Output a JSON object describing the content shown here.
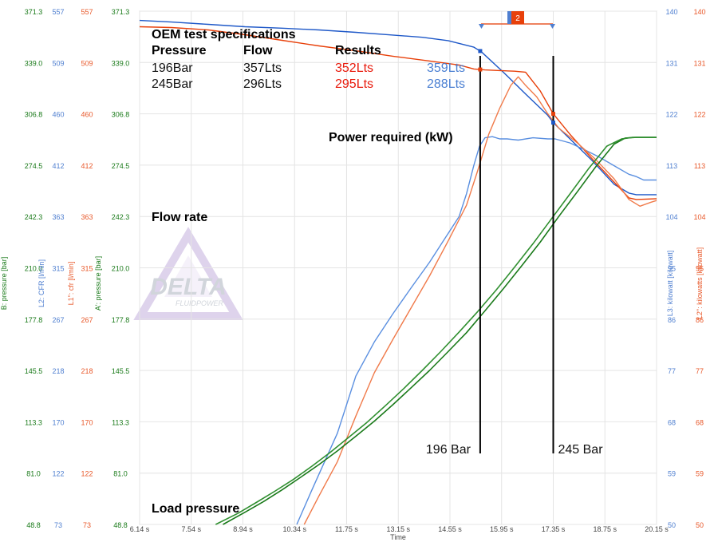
{
  "chart_data": {
    "type": "line",
    "x_axis": {
      "label": "Time",
      "ticks": [
        "6.14 s",
        "7.54 s",
        "8.94 s",
        "10.34 s",
        "11.75 s",
        "13.15 s",
        "14.55 s",
        "15.95 s",
        "17.35 s",
        "18.75 s",
        "20.15 s"
      ],
      "range": [
        6.14,
        20.15
      ]
    },
    "axes": [
      {
        "label": "B: pressure [bar]",
        "side": "left",
        "color": "#1a7a1a",
        "ticks": [
          "371.3",
          "339.0",
          "306.8",
          "274.5",
          "242.3",
          "210.0",
          "177.8",
          "145.5",
          "113.3",
          "81.0",
          "48.8"
        ]
      },
      {
        "label": "L2: CFR [l/min]",
        "side": "left",
        "color": "#4f7fd0",
        "ticks": [
          "557",
          "509",
          "460",
          "412",
          "363",
          "315",
          "267",
          "218",
          "170",
          "122",
          "73"
        ]
      },
      {
        "label": "L1\": cfr [l/min]",
        "side": "left",
        "color": "#e8582a",
        "ticks": [
          "557",
          "509",
          "460",
          "412",
          "363",
          "315",
          "267",
          "218",
          "170",
          "122",
          "73"
        ]
      },
      {
        "label": "A': pressure [bar]",
        "side": "left",
        "color": "#1a7a1a",
        "ticks": [
          "371.3",
          "339.0",
          "306.8",
          "274.5",
          "242.3",
          "210.0",
          "177.8",
          "145.5",
          "113.3",
          "81.0",
          "48.8"
        ]
      },
      {
        "label": "L3: kilowatt [kilowatt]",
        "side": "right",
        "color": "#4f7fd0",
        "ticks": [
          "140",
          "131",
          "122",
          "113",
          "104",
          "95",
          "86",
          "77",
          "68",
          "59",
          "50"
        ]
      },
      {
        "label": "L2\": kilowatts [kilowatt]",
        "side": "right",
        "color": "#e8582a",
        "ticks": [
          "140",
          "131",
          "122",
          "113",
          "104",
          "95",
          "86",
          "77",
          "68",
          "59",
          "50"
        ]
      }
    ],
    "series": [
      {
        "color": "#1e58c8",
        "kind": "flow",
        "x": [
          6.14,
          7.0,
          8.0,
          9.0,
          10.0,
          11.0,
          12.0,
          13.0,
          13.8,
          14.5,
          15.2,
          15.4,
          16.0,
          16.6,
          17.2,
          17.35,
          17.8,
          18.4,
          19.0,
          19.4,
          19.6,
          20.15,
          20.15
        ],
        "y": [
          365.5,
          364.5,
          363,
          361.5,
          360.6,
          359.5,
          358,
          356.3,
          354.9,
          352.8,
          348.7,
          345.8,
          332.9,
          319.3,
          305.9,
          301.3,
          291.1,
          277.5,
          262.5,
          257.0,
          256.0,
          256.0,
          256.0
        ]
      },
      {
        "color": "#e8400a",
        "kind": "flow",
        "x": [
          6.14,
          7.0,
          8.0,
          9.0,
          10.0,
          11.0,
          12.0,
          13.0,
          14.0,
          14.8,
          15.2,
          15.5,
          15.9,
          16.3,
          16.6,
          17.0,
          17.35,
          17.8,
          18.4,
          19.0,
          19.4,
          19.6,
          20.15
        ],
        "y": [
          361.5,
          361.0,
          359.5,
          356.5,
          353.0,
          349.5,
          346.4,
          343.0,
          340.0,
          337.5,
          335.0,
          334.4,
          334.0,
          333.6,
          333.0,
          321.1,
          306.8,
          294.0,
          278.6,
          263.9,
          254.0,
          253.0,
          253.5
        ]
      },
      {
        "color": "#5a8fe0",
        "kind": "power",
        "x": [
          10.4,
          10.8,
          11.5,
          12.0,
          12.5,
          13.0,
          13.5,
          14.0,
          14.4,
          14.8,
          15.0,
          15.2,
          15.35,
          15.5,
          15.7,
          15.9,
          16.1,
          16.4,
          16.8,
          17.2,
          17.4,
          17.8,
          18.2,
          18.6,
          19.0,
          19.4,
          19.6,
          19.8,
          20.15
        ],
        "y": [
          50.0,
          55.9,
          66.0,
          76.0,
          82.0,
          86.9,
          91.5,
          96.0,
          100.0,
          104.0,
          108.0,
          113.0,
          116.3,
          117.8,
          118.0,
          117.6,
          117.6,
          117.4,
          117.8,
          117.6,
          117.6,
          116.9,
          115.7,
          114.4,
          112.9,
          111.4,
          111.0,
          110.4,
          110.4
        ]
      },
      {
        "color": "#f07a4a",
        "kind": "power",
        "x": [
          10.6,
          11.0,
          11.5,
          12.0,
          12.5,
          13.0,
          13.5,
          14.0,
          14.5,
          15.0,
          15.3,
          15.6,
          15.9,
          16.2,
          16.4,
          16.6,
          16.9,
          17.2,
          17.5,
          18.0,
          18.5,
          19.0,
          19.4,
          19.7,
          20.0,
          20.15
        ],
        "y": [
          50.0,
          55.0,
          61.0,
          69.0,
          76.6,
          82.4,
          88.0,
          93.6,
          99.7,
          106.0,
          112.0,
          118.4,
          123.0,
          127.0,
          128.5,
          127.0,
          125.0,
          122.0,
          119.5,
          116.9,
          114.0,
          110.6,
          107.0,
          105.8,
          106.5,
          106.8
        ]
      },
      {
        "color": "#1a7a1a",
        "kind": "pressure",
        "x": [
          8.4,
          9.0,
          9.5,
          10.0,
          10.5,
          11.0,
          11.5,
          12.0,
          12.5,
          13.0,
          13.5,
          14.0,
          14.5,
          15.0,
          15.5,
          16.0,
          16.5,
          17.0,
          17.5,
          18.0,
          18.5,
          19.0,
          19.3,
          19.6,
          20.15
        ],
        "y": [
          48.8,
          56.5,
          63.2,
          70.5,
          78.4,
          86.4,
          95.0,
          104.2,
          113.7,
          124.0,
          134.7,
          145.6,
          157.4,
          169.3,
          183.0,
          197.0,
          211.5,
          226.3,
          242.3,
          257.8,
          273.5,
          287.8,
          291.6,
          292.0,
          292.0
        ]
      },
      {
        "color": "#2f8f2f",
        "kind": "pressure",
        "x": [
          8.2,
          8.8,
          9.3,
          9.8,
          10.3,
          10.8,
          11.3,
          11.8,
          12.3,
          12.8,
          13.3,
          13.8,
          14.3,
          14.8,
          15.3,
          15.8,
          16.3,
          16.8,
          17.3,
          17.8,
          18.3,
          18.8,
          19.2,
          19.5,
          20.15
        ],
        "y": [
          48.8,
          55.7,
          62.6,
          69.6,
          77.0,
          85.2,
          94.0,
          103.4,
          112.9,
          123.4,
          134.2,
          145.6,
          157.4,
          169.7,
          182.5,
          196.0,
          210.4,
          225.2,
          240.8,
          256.4,
          272.1,
          286.5,
          291.0,
          292.0,
          292.0
        ]
      }
    ],
    "markers": [
      {
        "time": 15.37,
        "label": "196 Bar"
      },
      {
        "time": 17.35,
        "label": "245 Bar"
      }
    ],
    "annotations": {
      "spec_title": "OEM test specifications",
      "headers": [
        "Pressure",
        "Flow",
        "Results"
      ],
      "rows": [
        {
          "pressure": "196Bar",
          "flow": "357Lts",
          "result_red": "352Lts",
          "result_blue": "359Lts"
        },
        {
          "pressure": "245Bar",
          "flow": "296Lts",
          "result_red": "295Lts",
          "result_blue": "288Lts"
        }
      ],
      "power_label": "Power required (kW)",
      "flow_label": "Flow rate",
      "load_label": "Load pressure"
    },
    "range_badge": "2",
    "watermark": {
      "text": "DELTA",
      "subtext": "FLUIDPOWER"
    },
    "grid": true
  }
}
